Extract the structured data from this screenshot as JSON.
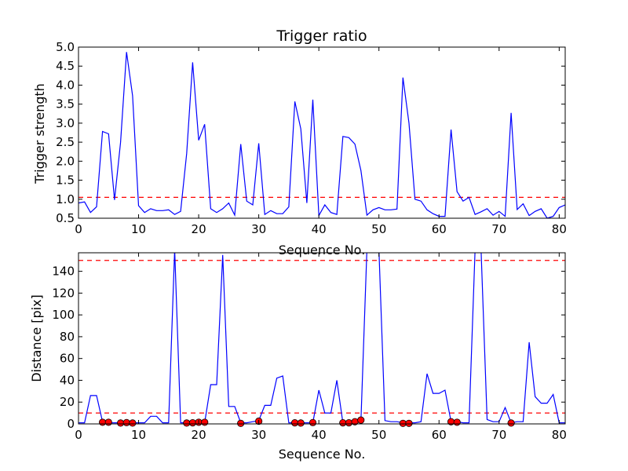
{
  "chart_data": [
    {
      "type": "line",
      "title": "Trigger ratio",
      "xlabel": "Sequence No.",
      "ylabel": "Trigger strength",
      "xlim": [
        0,
        81
      ],
      "ylim": [
        0.5,
        5.0
      ],
      "xticks": [
        0,
        10,
        20,
        30,
        40,
        50,
        60,
        70,
        80
      ],
      "yticks": [
        0.5,
        1.0,
        1.5,
        2.0,
        2.5,
        3.0,
        3.5,
        4.0,
        4.5,
        5.0
      ],
      "ytick_labels": [
        "0.5",
        "1.0",
        "1.5",
        "2.0",
        "2.5",
        "3.0",
        "3.5",
        "4.0",
        "4.5",
        "5.0"
      ],
      "line_color": "#0000ff",
      "threshold": 1.05,
      "threshold_color": "#ff0000",
      "x": [
        0,
        1,
        2,
        3,
        4,
        5,
        6,
        7,
        8,
        9,
        10,
        11,
        12,
        13,
        14,
        15,
        16,
        17,
        18,
        19,
        20,
        21,
        22,
        23,
        24,
        25,
        26,
        27,
        28,
        29,
        30,
        31,
        32,
        33,
        34,
        35,
        36,
        37,
        38,
        39,
        40,
        41,
        42,
        43,
        44,
        45,
        46,
        47,
        48,
        49,
        50,
        51,
        52,
        53,
        54,
        55,
        56,
        57,
        58,
        59,
        60,
        61,
        62,
        63,
        64,
        65,
        66,
        67,
        68,
        69,
        70,
        71,
        72,
        73,
        74,
        75,
        76,
        77,
        78,
        79,
        80,
        81
      ],
      "values": [
        0.9,
        0.93,
        0.65,
        0.8,
        2.78,
        2.72,
        0.98,
        2.5,
        4.87,
        3.72,
        0.83,
        0.65,
        0.75,
        0.7,
        0.7,
        0.72,
        0.6,
        0.68,
        2.2,
        4.6,
        2.55,
        2.97,
        0.75,
        0.65,
        0.75,
        0.9,
        0.58,
        2.45,
        0.95,
        0.85,
        2.47,
        0.6,
        0.7,
        0.62,
        0.62,
        0.8,
        3.57,
        2.85,
        0.9,
        3.62,
        0.57,
        0.85,
        0.65,
        0.6,
        2.65,
        2.62,
        2.45,
        1.75,
        0.58,
        0.72,
        0.78,
        0.72,
        0.72,
        0.74,
        4.2,
        3.0,
        1.0,
        0.95,
        0.72,
        0.62,
        0.55,
        0.55,
        2.83,
        1.2,
        0.95,
        1.05,
        0.6,
        0.67,
        0.75,
        0.58,
        0.68,
        0.55,
        3.27,
        0.73,
        0.88,
        0.57,
        0.68,
        0.75,
        0.5,
        0.55,
        0.78,
        0.85
      ]
    },
    {
      "type": "line",
      "title": "",
      "xlabel": "Sequence No.",
      "ylabel": "Distance [pix]",
      "xlim": [
        0,
        81
      ],
      "ylim": [
        0,
        157
      ],
      "xticks": [
        0,
        10,
        20,
        30,
        40,
        50,
        60,
        70,
        80
      ],
      "yticks": [
        0,
        20,
        40,
        60,
        80,
        100,
        120,
        140
      ],
      "line_color": "#0000ff",
      "thresholds": [
        150,
        10
      ],
      "threshold_color": "#ff0000",
      "marker_color": "#ff0000",
      "x": [
        0,
        1,
        2,
        3,
        4,
        5,
        6,
        7,
        8,
        9,
        10,
        11,
        12,
        13,
        14,
        15,
        16,
        17,
        18,
        19,
        20,
        21,
        22,
        23,
        24,
        25,
        26,
        27,
        28,
        29,
        30,
        31,
        32,
        33,
        34,
        35,
        36,
        37,
        38,
        39,
        40,
        41,
        42,
        43,
        44,
        45,
        46,
        47,
        48,
        49,
        50,
        51,
        52,
        53,
        54,
        55,
        56,
        57,
        58,
        59,
        60,
        61,
        62,
        63,
        64,
        65,
        66,
        67,
        68,
        69,
        70,
        71,
        72,
        73,
        74,
        75,
        76,
        77,
        78,
        79,
        80,
        81
      ],
      "values": [
        1,
        1,
        26,
        26,
        2,
        1,
        1,
        1,
        1,
        1,
        1,
        1,
        7,
        7,
        1,
        1,
        160,
        1,
        1,
        1,
        1,
        1,
        36,
        36,
        155,
        16,
        16,
        1,
        1,
        2,
        3,
        17,
        17,
        42,
        44,
        1,
        1,
        1,
        1,
        1,
        31,
        10,
        10,
        40,
        1,
        1,
        2,
        3,
        160,
        160,
        160,
        3,
        2,
        2,
        1,
        1,
        1,
        2,
        46,
        28,
        28,
        31,
        2,
        2,
        1,
        1,
        160,
        160,
        4,
        2,
        2,
        15,
        1,
        2,
        2,
        75,
        25,
        19,
        19,
        27,
        1,
        1
      ],
      "markers": [
        {
          "x": 4,
          "y": 1.5
        },
        {
          "x": 5,
          "y": 1.5
        },
        {
          "x": 7,
          "y": 0.8
        },
        {
          "x": 8,
          "y": 1.2
        },
        {
          "x": 9,
          "y": 0.8
        },
        {
          "x": 18,
          "y": 0.8
        },
        {
          "x": 19,
          "y": 1.0
        },
        {
          "x": 20,
          "y": 1.5
        },
        {
          "x": 21,
          "y": 1.5
        },
        {
          "x": 27,
          "y": 0.5
        },
        {
          "x": 30,
          "y": 2.5
        },
        {
          "x": 36,
          "y": 1.0
        },
        {
          "x": 37,
          "y": 0.8
        },
        {
          "x": 39,
          "y": 1.2
        },
        {
          "x": 44,
          "y": 1.0
        },
        {
          "x": 45,
          "y": 1.0
        },
        {
          "x": 46,
          "y": 2.0
        },
        {
          "x": 47,
          "y": 3.5
        },
        {
          "x": 54,
          "y": 0.5
        },
        {
          "x": 55,
          "y": 0.5
        },
        {
          "x": 62,
          "y": 2.0
        },
        {
          "x": 63,
          "y": 1.5
        },
        {
          "x": 72,
          "y": 0.8
        }
      ]
    }
  ]
}
